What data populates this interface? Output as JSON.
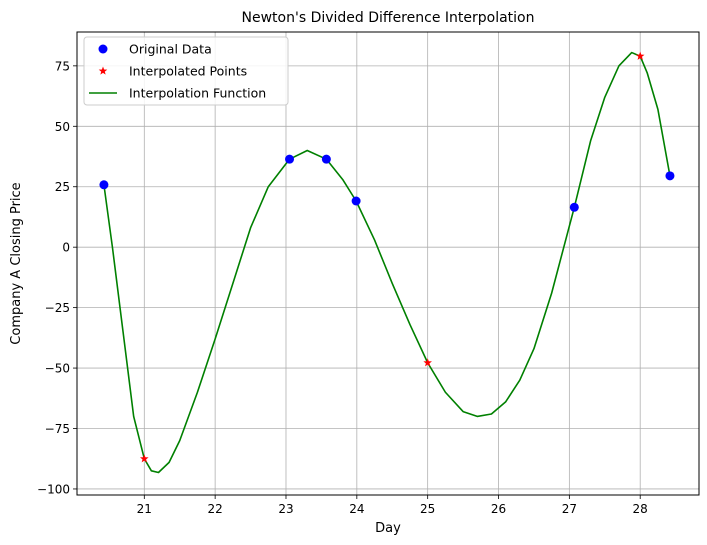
{
  "chart_data": {
    "type": "line",
    "title": "Newton's Divided Difference Interpolation",
    "xlabel": "Day",
    "ylabel": "Company A Closing Price",
    "xlim": [
      20.05,
      28.83
    ],
    "ylim": [
      -102.5,
      89
    ],
    "xticks": [
      21,
      22,
      23,
      24,
      25,
      26,
      27,
      28
    ],
    "yticks": [
      -100,
      -75,
      -50,
      -25,
      0,
      25,
      50,
      75
    ],
    "xtick_labels": [
      "21",
      "22",
      "23",
      "24",
      "25",
      "26",
      "27",
      "28"
    ],
    "ytick_labels": [
      "−100",
      "−75",
      "−50",
      "−25",
      "0",
      "25",
      "50",
      "75"
    ],
    "grid": true,
    "legend_position": "upper-left",
    "series": [
      {
        "name": "Original Data",
        "kind": "scatter",
        "marker": "circle",
        "color": "#0000ff",
        "points": [
          [
            20.43,
            25.8
          ],
          [
            23.05,
            36.4
          ],
          [
            23.57,
            36.4
          ],
          [
            23.99,
            19.1
          ],
          [
            27.07,
            16.5
          ],
          [
            28.42,
            29.5
          ]
        ]
      },
      {
        "name": "Interpolated Points",
        "kind": "scatter",
        "marker": "star",
        "color": "#ff0000",
        "points": [
          [
            21.0,
            -87.5
          ],
          [
            25.0,
            -47.8
          ],
          [
            28.0,
            79.0
          ]
        ]
      },
      {
        "name": "Interpolation Function",
        "kind": "line",
        "color": "#008000",
        "points": [
          [
            20.43,
            25.8
          ],
          [
            20.55,
            0
          ],
          [
            20.7,
            -35
          ],
          [
            20.85,
            -70
          ],
          [
            21.0,
            -87.5
          ],
          [
            21.1,
            -92.5
          ],
          [
            21.2,
            -93.2
          ],
          [
            21.35,
            -89
          ],
          [
            21.5,
            -80
          ],
          [
            21.75,
            -60
          ],
          [
            22.0,
            -38
          ],
          [
            22.25,
            -15
          ],
          [
            22.5,
            8
          ],
          [
            22.75,
            25
          ],
          [
            23.05,
            36.4
          ],
          [
            23.3,
            40
          ],
          [
            23.57,
            36.4
          ],
          [
            23.8,
            28
          ],
          [
            23.99,
            19.1
          ],
          [
            24.25,
            3
          ],
          [
            24.5,
            -15
          ],
          [
            24.75,
            -32
          ],
          [
            25.0,
            -47.8
          ],
          [
            25.25,
            -60
          ],
          [
            25.5,
            -68
          ],
          [
            25.7,
            -70
          ],
          [
            25.9,
            -69
          ],
          [
            26.1,
            -64
          ],
          [
            26.3,
            -55
          ],
          [
            26.5,
            -42
          ],
          [
            26.75,
            -19
          ],
          [
            27.07,
            16.5
          ],
          [
            27.3,
            44
          ],
          [
            27.5,
            62
          ],
          [
            27.7,
            75
          ],
          [
            27.88,
            80.5
          ],
          [
            28.0,
            79.0
          ],
          [
            28.1,
            72
          ],
          [
            28.25,
            57
          ],
          [
            28.42,
            29.5
          ]
        ]
      }
    ]
  }
}
